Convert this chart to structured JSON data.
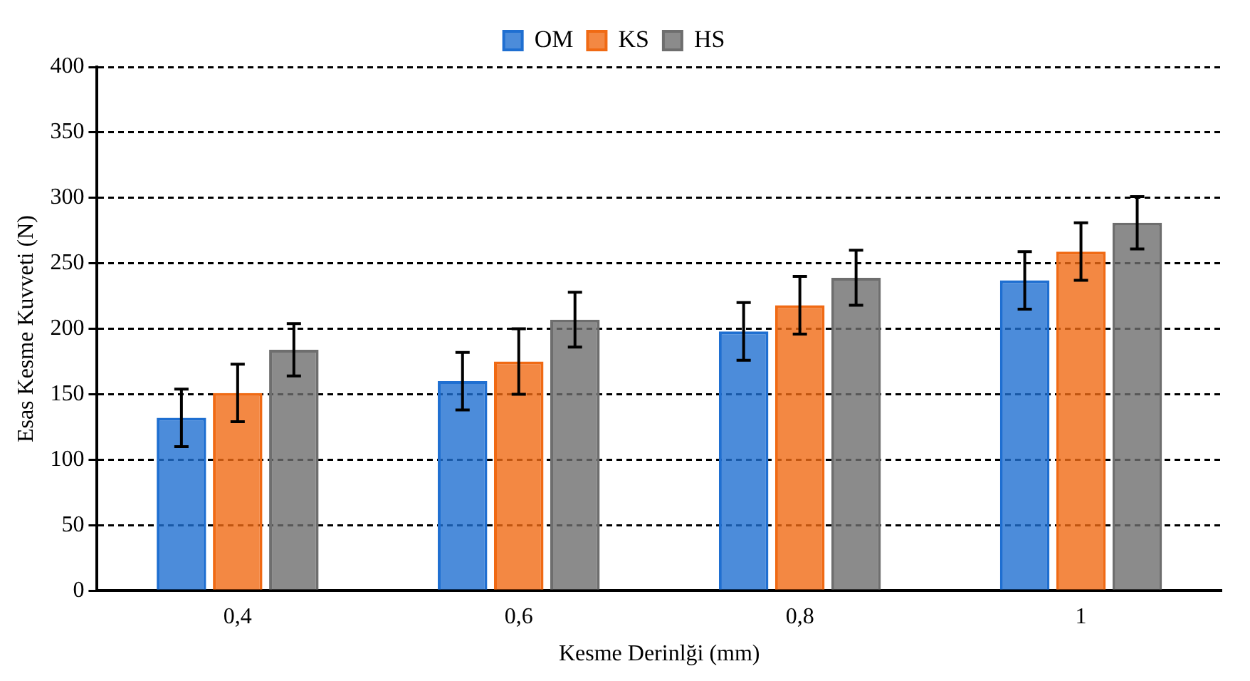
{
  "chart_data": {
    "type": "bar",
    "xlabel": "Kesme Derinlği (mm)",
    "ylabel": "Esas Kesme Kuvveti (N)",
    "categories": [
      "0,4",
      "0,6",
      "0,8",
      "1"
    ],
    "series": [
      {
        "name": "OM",
        "color": "#1f6fd1",
        "values": [
          132,
          160,
          198,
          237
        ],
        "errors": [
          22,
          22,
          22,
          22
        ]
      },
      {
        "name": "KS",
        "color": "#f06a14",
        "values": [
          151,
          175,
          218,
          259
        ],
        "errors": [
          22,
          25,
          22,
          22
        ]
      },
      {
        "name": "HS",
        "color": "#6e6e6e",
        "values": [
          184,
          207,
          239,
          281
        ],
        "errors": [
          20,
          21,
          21,
          20
        ]
      }
    ],
    "ylim": [
      0,
      400
    ],
    "yticks": [
      0,
      50,
      100,
      150,
      200,
      250,
      300,
      350,
      400
    ],
    "grid": "y",
    "legend": "top"
  }
}
